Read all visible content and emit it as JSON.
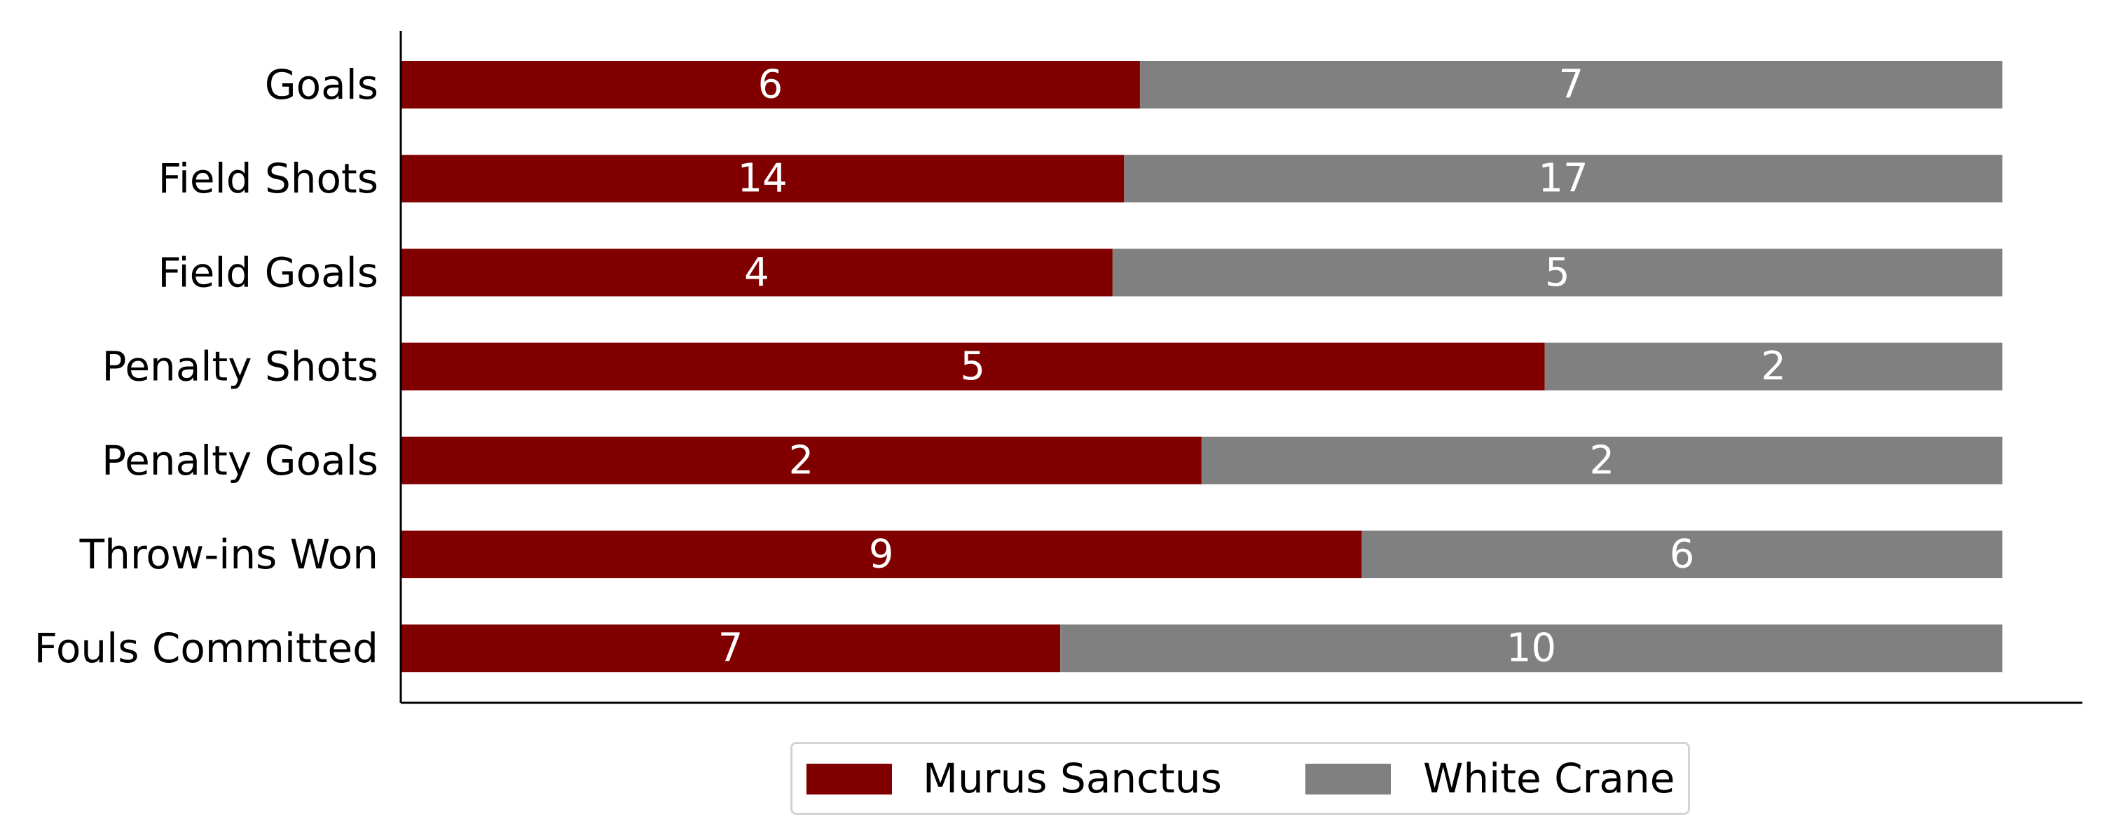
{
  "chart_data": {
    "type": "bar",
    "orientation": "horizontal",
    "stacking": "percent",
    "categories": [
      "Goals",
      "Field Shots",
      "Field Goals",
      "Penalty Shots",
      "Penalty Goals",
      "Throw-ins Won",
      "Fouls Committed"
    ],
    "series": [
      {
        "name": "Murus Sanctus",
        "color": "#800000",
        "values": [
          6,
          14,
          4,
          5,
          2,
          9,
          7
        ]
      },
      {
        "name": "White Crane",
        "color": "#808080",
        "values": [
          7,
          17,
          5,
          2,
          2,
          6,
          10
        ]
      }
    ],
    "title": "",
    "xlabel": "",
    "ylabel": "",
    "xlim": [
      0,
      1.05
    ],
    "grid": false,
    "legend_position": "bottom-center",
    "bar_label_color": "#ffffff"
  }
}
